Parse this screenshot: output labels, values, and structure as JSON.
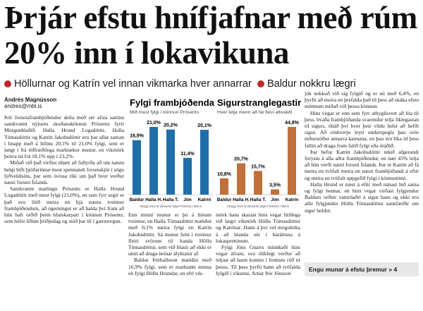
{
  "headline": "Þrjár efstu hnífjafnar með rúm 20% inn í lokavikuna",
  "subheads": [
    "Höllurnar og Katrín vel innan vikmarka hver annarrar",
    "Baldur nokkru lægri"
  ],
  "byline": {
    "author": "Andrés Magnússon",
    "email": "andres@mbl.is"
  },
  "chart_data": [
    {
      "type": "bar",
      "title": "Fylgi frambjóðenda",
      "subtitle": "Mið mest fylgi í könnun Prósents",
      "categories": [
        "Baldur",
        "Halla H.",
        "Halla T.",
        "Jón",
        "Katrín"
      ],
      "values": [
        16.9,
        21.0,
        20.2,
        11.4,
        20.1
      ],
      "value_labels": [
        "16,9%",
        "21,0%",
        "20,2%",
        "11,4%",
        "20,1%"
      ],
      "color": "#1f6fa8",
      "note": "Skuggi vísar til vikmarka fylgis Prósents / Mbl.is"
    },
    {
      "type": "bar",
      "title": "Sigurstranglegastir",
      "subtitle": "Hver telja menn að fái flest atkvæði",
      "categories": [
        "Baldur",
        "Halla H.",
        "Halla T.",
        "Jón",
        "Katrín"
      ],
      "values": [
        10.8,
        20.7,
        15.7,
        3.5,
        44.8
      ],
      "value_labels": [
        "10,8%",
        "20,7%",
        "15,7%",
        "3,5%",
        "44,8%"
      ],
      "color": "#c0703a",
      "note": "Skuggi vísar til vikmarka fylgis Prósents / Mbl.is"
    }
  ],
  "columns": [
    [
      "Þrír forsetaframbjóðendur deila með sér efsta sætinu samkvæmt nýjustu skoðanakönnun Prósents fyrir Morgunblaðið. Halla Hrund Logadóttir, Halla Tómasdóttir og Katrín Jakobsdóttir eru þar allar saman í hnapp með á bilinu 20,1% til 21,0% fylgi, sem er langt í frá tölfræðilega marktækur munur, en vikmörk þeirra ná frá 18,1% upp í 23,2%.",
      "Miðað við það virðist óhætt að fullyrða að um næstu helgi bíði þjóðarinnar mest spennandi forsetakjör í sögu lýðveldisins, þar sem óvissa ríki um það hver verður næsti forseti Íslands.",
      "Samkvæmt mælingu Prósents er Halla Hrund Logadóttir með mest fylgi (21,0%), en sem fyrr segir er það svo lítið meira en hjá næstu tveimur frambjóðendum, að ógerningur er að halda því fram að hún hafi orðið þeim hlutskarpari í könnun Prósents, sem hófst liðinn þriðjudag og stóð þar til í gærmorgun."
    ],
    [
      "Enn minni munur er þó á hinum tveimur, en Halla Tómasdóttir mældist með 0,1% meira fylgi en Katrín Jakobsdóttir. Sá munur felst í tveimur fleiri svörum til handa Höllu Tómasdóttur, sem við blasir að ekki er unnt að draga neinar ályktanir af.",
      "Baldur Þórhallsson mældist með 16,9% fylgi, sem er marktækt minna en fylgi Höllu Hrundar, en efri vik-"
    ],
    [
      "mörk hans skarast hins vegar lítillega við lægri vikmörk Höllu Tómasdóttur og Katrínar. Hann á því vel möguleika á að blanda sér í baráttuna á lokasprettinum.",
      "Fylgi Jóns Gnarrs minnkaði hins vegar áfram, svo ólíklegt verður að teljast að hann komist í fremstu röð úr þessu. Til þess þyrfti hann að tvöfalda fylgið í vikunni. Arnar Þór Jónsson"
    ],
    [
      "jók nokkuð við sig fylgið og er nú með 6,4%, en þyrfti að meira en þrefalda það til þess að skáka efstu mönnum miðað við þessa könnun.",
      "Hins vegar er enn sem fyrr athyglisvert að líta til þess, hvaða frambjóðanda svarendur telja líklegastan til sigurs, óháð því hver þeir vildu helst að hefði sigur. Að einhverju leyti endurspegla þau svör niðurstöður annarra kannana, en þau eru líka til þess fallin að draga fram falið fylgi eða óráðið.",
      "Þar hefur Katrín Jakobsdóttir tekið afgerandi forystu á alla aðra frambjóðendur, en nær 45% telja að hún verði næsti forseti Íslands. Þar er Katrín að fá meira en tvöfalt meira en næsti frambjóðandi á eftir og meira en tvöfalt uppgefið fylgi í könnuninni.",
      "Halla Hrund er næst á eftir með nánast hið sama og fylgi hennar, en hins vegar virðast fylgjendur Baldurs orðnir vantrúaðri á sigur hans og ekki eru allir fylgjendur Höllu Tómasdóttur sannfærðir um sigur heldur."
    ]
  ],
  "teaser": "Engu munar á efstu þremur » 4"
}
